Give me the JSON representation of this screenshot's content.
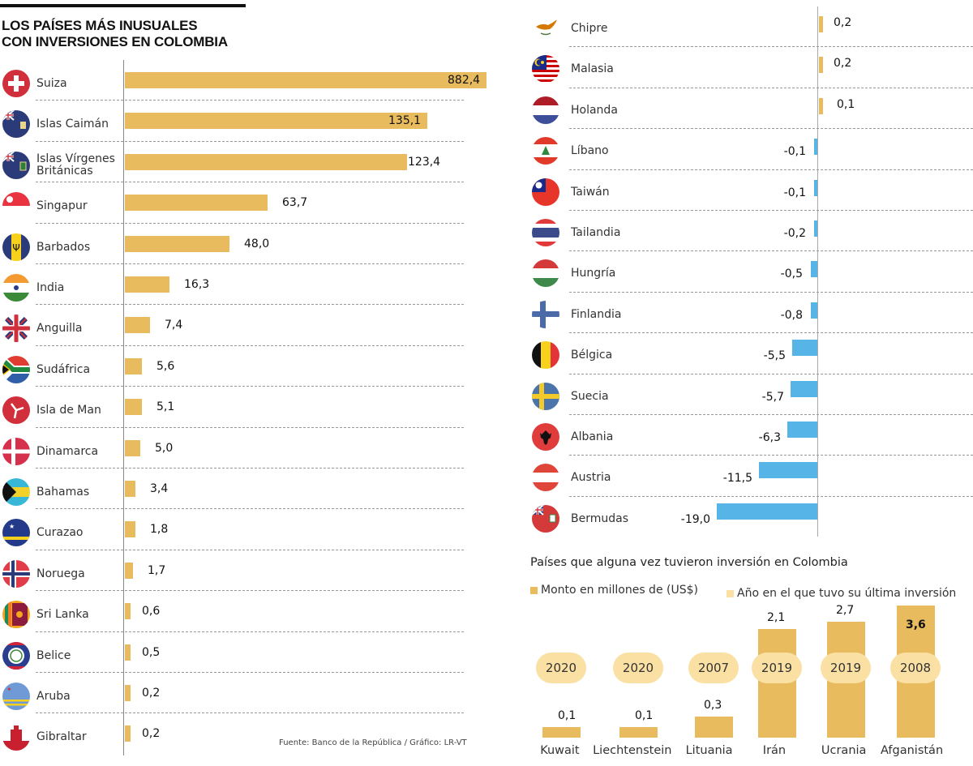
{
  "header": {
    "title_line1": "LOS PAÍSES MÁS INUSUALES",
    "title_line2": "CON INVERSIONES EN COLOMBIA"
  },
  "source": "Fuente: Banco de la República / Gráfico: LR-VT",
  "colors": {
    "positive": "#e7bb5e",
    "negative": "#56b4e6",
    "year_pill": "#fbe0a3",
    "axis": "#888888"
  },
  "chart_data": [
    {
      "type": "bar",
      "orientation": "horizontal",
      "title": "LOS PAÍSES MÁS INUSUALES CON INVERSIONES EN COLOMBIA",
      "unit": "Millones de US$",
      "categories": [
        "Suiza",
        "Islas Caimán",
        "Islas Vírgenes Británicas",
        "Singapur",
        "Barbados",
        "India",
        "Anguilla",
        "Sudáfrica",
        "Isla de Man",
        "Dinamarca",
        "Bahamas",
        "Curazao",
        "Noruega",
        "Sri Lanka",
        "Belice",
        "Aruba",
        "Gibraltar"
      ],
      "values": [
        882.4,
        135.1,
        123.4,
        63.7,
        48.0,
        16.3,
        7.4,
        5.6,
        5.1,
        5.0,
        3.4,
        1.8,
        1.7,
        0.6,
        0.5,
        0.2,
        0.2
      ],
      "labels": [
        "882,4",
        "135,1",
        "123,4",
        "63,7",
        "48,0",
        "16,3",
        "7,4",
        "5,6",
        "5,1",
        "5,0",
        "3,4",
        "1,8",
        "1,7",
        "0,6",
        "0,5",
        "0,2",
        "0,2"
      ],
      "flags": [
        "switzerland-flag-icon",
        "cayman-islands-flag-icon",
        "british-virgin-islands-flag-icon",
        "singapore-flag-icon",
        "barbados-flag-icon",
        "india-flag-icon",
        "anguilla-flag-icon",
        "south-africa-flag-icon",
        "isle-of-man-flag-icon",
        "denmark-flag-icon",
        "bahamas-flag-icon",
        "curacao-flag-icon",
        "norway-flag-icon",
        "sri-lanka-flag-icon",
        "belize-flag-icon",
        "aruba-flag-icon",
        "gibraltar-flag-icon"
      ],
      "grid": "dashed-row-separators"
    },
    {
      "type": "bar",
      "orientation": "horizontal",
      "unit": "Millones de US$",
      "categories": [
        "Chipre",
        "Malasia",
        "Holanda",
        "Líbano",
        "Taiwán",
        "Tailandia",
        "Hungría",
        "Finlandia",
        "Bélgica",
        "Suecia",
        "Albania",
        "Austria",
        "Bermudas"
      ],
      "values": [
        0.2,
        0.2,
        0.1,
        -0.1,
        -0.1,
        -0.2,
        -0.5,
        -0.8,
        -5.5,
        -5.7,
        -6.3,
        -11.5,
        -19.0
      ],
      "labels": [
        "0,2",
        "0,2",
        "0,1",
        "-0,1",
        "-0,1",
        "-0,2",
        "-0,5",
        "-0,8",
        "-5,5",
        "-5,7",
        "-6,3",
        "-11,5",
        "-19,0"
      ],
      "flags": [
        "cyprus-flag-icon",
        "malaysia-flag-icon",
        "netherlands-flag-icon",
        "lebanon-flag-icon",
        "taiwan-flag-icon",
        "thailand-flag-icon",
        "hungary-flag-icon",
        "finland-flag-icon",
        "belgium-flag-icon",
        "sweden-flag-icon",
        "albania-flag-icon",
        "austria-flag-icon",
        "bermuda-flag-icon"
      ],
      "grid": "dashed-row-separators"
    },
    {
      "type": "bar",
      "orientation": "vertical",
      "title": "Países que alguna vez tuvieron inversión en Colombia",
      "legend": [
        "Monto en millones de (US$)",
        "Año en el que tuvo su última inversión"
      ],
      "categories": [
        "Kuwait",
        "Liechtenstein",
        "Lituania",
        "Irán",
        "Ucrania",
        "Afganistán"
      ],
      "values": [
        0.1,
        0.1,
        0.3,
        2.1,
        2.7,
        3.6
      ],
      "labels": [
        "0,1",
        "0,1",
        "0,3",
        "2,1",
        "2,7",
        "3,6"
      ],
      "years": [
        "2020",
        "2020",
        "2007",
        "2019",
        "2019",
        "2008"
      ],
      "highlight": "Afganistán"
    }
  ]
}
